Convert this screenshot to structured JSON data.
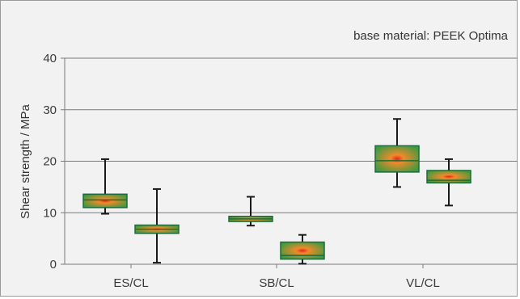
{
  "chart_data": {
    "type": "box",
    "annotation": "base material: PEEK Optima",
    "ylabel": "Shear strength / MPa",
    "xlabel": "",
    "ylim": [
      0,
      40
    ],
    "y_ticks": [
      0,
      10,
      20,
      30,
      40
    ],
    "grid": true,
    "categories": [
      "ES/CL",
      "SB/CL",
      "VL/CL"
    ],
    "boxes_per_category": 2,
    "boxes": [
      {
        "category": "ES/CL",
        "whisker_low": 9.8,
        "q1": 11.0,
        "median": 12.5,
        "q3": 13.6,
        "whisker_high": 20.4
      },
      {
        "category": "ES/CL",
        "whisker_low": 0.3,
        "q1": 6.0,
        "median": 6.8,
        "q3": 7.6,
        "whisker_high": 14.6
      },
      {
        "category": "SB/CL",
        "whisker_low": 7.5,
        "q1": 8.3,
        "median": 8.8,
        "q3": 9.3,
        "whisker_high": 13.1
      },
      {
        "category": "SB/CL",
        "whisker_low": 0.1,
        "q1": 1.0,
        "median": 1.7,
        "q3": 4.3,
        "whisker_high": 5.7
      },
      {
        "category": "VL/CL",
        "whisker_low": 15.0,
        "q1": 17.9,
        "median": 20.1,
        "q3": 23.0,
        "whisker_high": 28.2
      },
      {
        "category": "VL/CL",
        "whisker_low": 11.4,
        "q1": 15.8,
        "median": 16.3,
        "q3": 18.2,
        "whisker_high": 20.4
      }
    ],
    "colors": {
      "box_edge": "#1d6b3a",
      "box_outer": "#3f9a3f",
      "box_center": "#f08a2a",
      "box_hot": "#e8241e",
      "whisker": "#1a1a1a",
      "grid": "#7a7a7a",
      "background": "#f2f2f2"
    }
  }
}
